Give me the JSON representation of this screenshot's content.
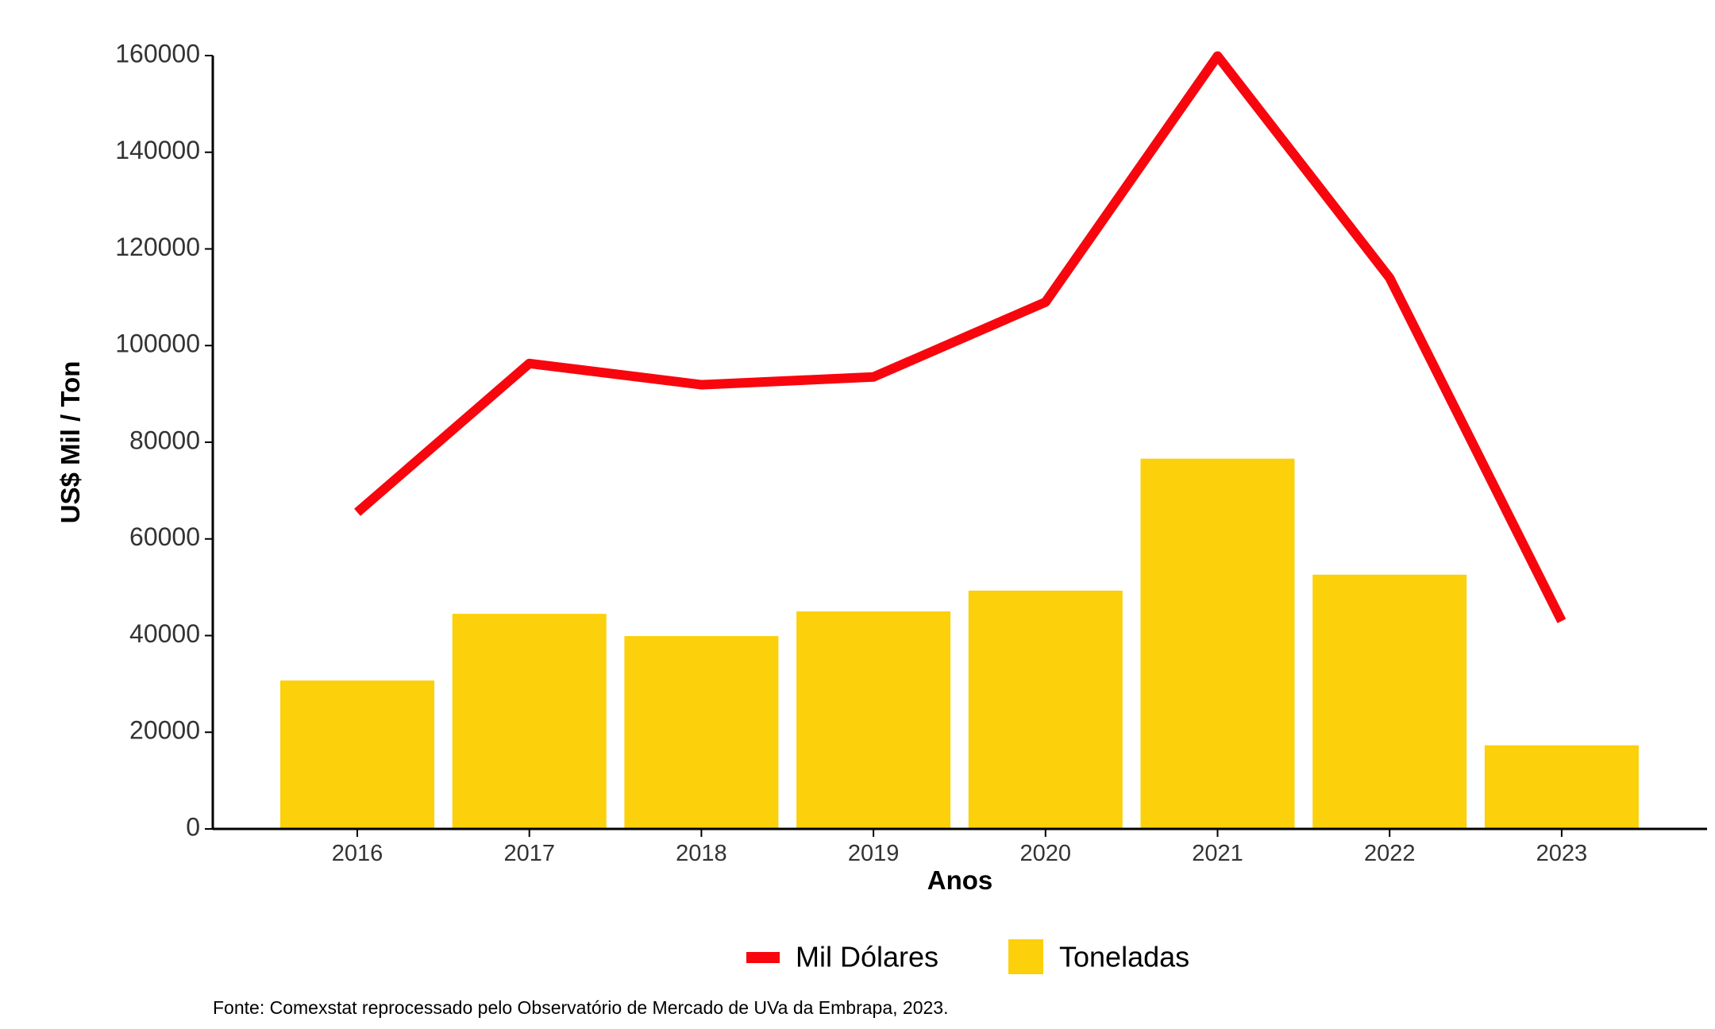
{
  "chart_data": {
    "type": "bar",
    "categories": [
      "2016",
      "2017",
      "2018",
      "2019",
      "2020",
      "2021",
      "2022",
      "2023"
    ],
    "series": [
      {
        "name": "Toneladas",
        "type": "bar",
        "color": "#FCD00A",
        "values": [
          30700,
          44500,
          39900,
          45000,
          49300,
          76600,
          52600,
          17300
        ]
      },
      {
        "name": "Mil Dólares",
        "type": "line",
        "color": "#F8060E",
        "values": [
          65500,
          96300,
          91900,
          93500,
          109000,
          159900,
          114000,
          43000
        ]
      }
    ],
    "title": "",
    "xlabel": "Anos",
    "ylabel": "US$ Mil / Ton",
    "ylim": [
      0,
      160000
    ],
    "yticks": [
      "0",
      "20000",
      "40000",
      "60000",
      "80000",
      "100000",
      "120000",
      "140000",
      "160000"
    ],
    "grid": false,
    "legend_position": "bottom"
  },
  "caption": "Fonte: Comexstat reprocessado pelo Observatório de Mercado de UVa da Embrapa, 2023."
}
